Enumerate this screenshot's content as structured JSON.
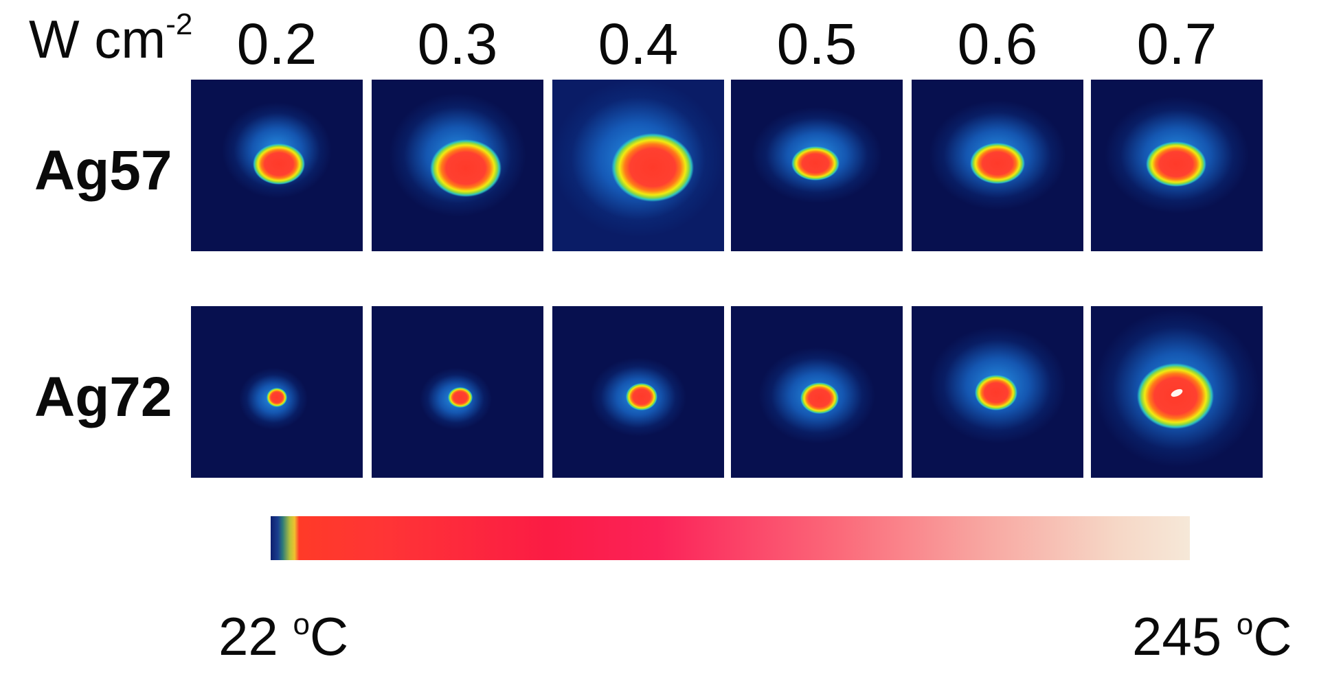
{
  "unit_label": {
    "text": "W cm",
    "superscript": "-2"
  },
  "columns": [
    "0.2",
    "0.3",
    "0.4",
    "0.5",
    "0.6",
    "0.7"
  ],
  "rows": [
    {
      "label": "Ag57"
    },
    {
      "label": "Ag72"
    }
  ],
  "colorbar": {
    "min_label": {
      "value": "22 ",
      "superscript": "o",
      "unit": "C"
    },
    "max_label": {
      "value": "245 ",
      "superscript": "o",
      "unit": "C"
    }
  },
  "colors": {
    "panel_background": "#07104f",
    "hot_spot": "#ff3a2a",
    "halo": "#2896eb"
  }
}
